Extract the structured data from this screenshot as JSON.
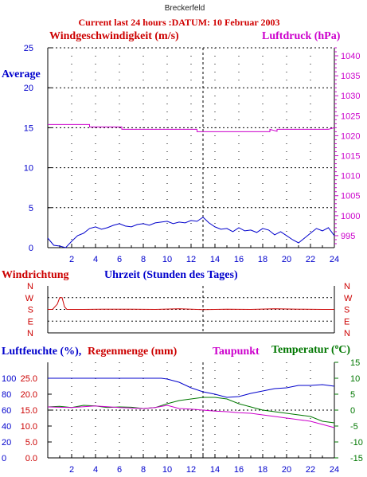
{
  "header": {
    "station": "Breckerfeld",
    "subtitle": "Current last 24 hours :DATUM: 10 Februar 2003"
  },
  "labels": {
    "wind_speed": "Windgeschwindigkeit (m/s)",
    "pressure": "Luftdruck (hPa)",
    "average": "Average",
    "wind_direction": "Windrichtung",
    "time_axis": "Uhrzeit (Stunden des Tages)",
    "humidity": "Luftfeuchte (%),",
    "rain": "Regenmenge (mm)",
    "dewpoint": "Taupunkt",
    "temperature": "Temperatur (",
    "temperature_unit": "C)",
    "degree_sign": "o"
  },
  "colors": {
    "wind_speed": "#0000cc",
    "pressure": "#cc00cc",
    "direction": "#cc0000",
    "humidity": "#0000cc",
    "rain": "#cc0000",
    "temperature": "#007700",
    "dewpoint": "#cc00cc",
    "axis": "#000000",
    "grid": "#000000"
  },
  "chart_data": [
    {
      "type": "line",
      "panel": "wind_pressure",
      "x_ticks": [
        2,
        4,
        6,
        8,
        10,
        12,
        14,
        16,
        18,
        20,
        22,
        24
      ],
      "xlim": [
        0,
        24
      ],
      "ylim_left": [
        0,
        25
      ],
      "yticks_left": [
        0,
        5,
        10,
        15,
        20,
        25
      ],
      "ylim_right": [
        992,
        1042
      ],
      "yticks_right": [
        995,
        1000,
        1005,
        1010,
        1015,
        1020,
        1025,
        1030,
        1035,
        1040
      ],
      "series": [
        {
          "name": "Average",
          "axis": "left",
          "x": [
            0,
            0.5,
            1,
            1.5,
            2,
            2.5,
            3,
            3.5,
            4,
            4.5,
            5,
            5.5,
            6,
            6.5,
            7,
            7.5,
            8,
            8.5,
            9,
            9.5,
            10,
            10.5,
            11,
            11.5,
            12,
            12.5,
            13,
            13.5,
            14,
            14.5,
            15,
            15.5,
            16,
            16.5,
            17,
            17.5,
            18,
            18.5,
            19,
            19.5,
            20,
            20.5,
            21,
            21.5,
            22,
            22.5,
            23,
            23.5,
            24
          ],
          "values": [
            1.2,
            0.3,
            0.2,
            0,
            0.8,
            1.5,
            1.8,
            2.4,
            2.6,
            2.3,
            2.5,
            2.8,
            3.0,
            2.7,
            2.6,
            2.9,
            3.0,
            2.8,
            3.1,
            3.2,
            3.3,
            3.0,
            3.2,
            3.1,
            3.4,
            3.3,
            3.8,
            3.1,
            2.6,
            2.3,
            2.4,
            2.0,
            2.5,
            2.1,
            2.2,
            1.9,
            2.4,
            2.2,
            1.6,
            2.0,
            1.5,
            1.0,
            0.6,
            1.2,
            1.8,
            2.4,
            2.1,
            2.5,
            1.5
          ]
        },
        {
          "name": "Luftdruck (hPa)",
          "axis": "right",
          "x": [
            0,
            3.5,
            3.5,
            6.2,
            6.2,
            12.5,
            12.5,
            18.6,
            18.6,
            19.2,
            19.2,
            23.5,
            24
          ],
          "values": [
            1022.8,
            1022.8,
            1022.2,
            1022.2,
            1021.6,
            1021.6,
            1021.0,
            1021.0,
            1021.6,
            1021.1,
            1021.6,
            1021.6,
            1022.0
          ]
        }
      ]
    },
    {
      "type": "line",
      "panel": "wind_direction",
      "xlim": [
        0,
        24
      ],
      "y_categories": [
        "N",
        "W",
        "S",
        "E",
        "N"
      ],
      "series": [
        {
          "name": "Windrichtung",
          "x": [
            0,
            0.4,
            0.6,
            0.8,
            1.0,
            1.2,
            1.4,
            1.6,
            2.0,
            3.0,
            5.0,
            7.0,
            9.0,
            11.0,
            13.0,
            15.0,
            17.0,
            19.0,
            21.0,
            23.0,
            24.0
          ],
          "values": [
            180,
            180,
            200,
            220,
            270,
            270,
            200,
            180,
            180,
            180,
            182,
            182,
            180,
            184,
            178,
            182,
            180,
            184,
            182,
            180,
            180
          ]
        }
      ]
    },
    {
      "type": "line",
      "panel": "humidity_rain_temp",
      "xlim": [
        0,
        24
      ],
      "ylim_left_humidity": [
        0,
        120
      ],
      "yticks_left_humidity": [
        0,
        20,
        40,
        60,
        80,
        100
      ],
      "ylim_left_rain": [
        0,
        30
      ],
      "yticks_left_rain": [
        "0.0",
        "5.0",
        "10.0",
        "15.0",
        "20.0",
        "25.0"
      ],
      "ylim_right": [
        -15,
        15
      ],
      "yticks_right": [
        -15,
        -10,
        -5,
        0,
        5,
        10,
        15
      ],
      "series": [
        {
          "name": "Luftfeuchte (%)",
          "axis": "left",
          "x": [
            0,
            2,
            4,
            6,
            8,
            9.5,
            10,
            11,
            12,
            13,
            14,
            15,
            16,
            17,
            18,
            19,
            20,
            21,
            22,
            23,
            24
          ],
          "values": [
            100,
            100,
            100,
            100,
            100,
            100,
            99,
            95,
            88,
            83,
            80,
            76,
            77,
            81,
            84,
            87,
            88,
            91,
            91,
            92,
            90
          ]
        },
        {
          "name": "Temperatur",
          "axis": "right",
          "x": [
            0,
            1,
            2,
            3,
            4,
            5,
            6,
            7,
            8,
            9,
            10,
            11,
            12,
            13,
            14,
            15,
            16,
            17,
            18,
            19,
            20,
            21,
            22,
            23,
            24
          ],
          "values": [
            1.0,
            1.2,
            0.8,
            1.5,
            1.3,
            0.8,
            1.0,
            0.9,
            0.5,
            0.8,
            2.0,
            3.0,
            3.5,
            4.0,
            4.0,
            3.5,
            2.0,
            1.0,
            0.0,
            -0.5,
            -1.0,
            -1.5,
            -2.0,
            -3.5,
            -4.0
          ]
        },
        {
          "name": "Taupunkt",
          "axis": "right",
          "x": [
            0,
            2,
            4,
            6,
            8,
            9,
            10,
            11,
            12,
            13,
            14,
            15,
            16,
            17,
            18,
            19,
            20,
            21,
            22,
            23,
            24
          ],
          "values": [
            1.0,
            0.8,
            1.3,
            0.8,
            0.5,
            0.8,
            1.5,
            0.5,
            0.3,
            0.0,
            -0.3,
            -0.5,
            -0.8,
            -1.0,
            -1.5,
            -2.0,
            -2.5,
            -3.0,
            -3.5,
            -4.5,
            -5.5
          ]
        }
      ]
    }
  ]
}
